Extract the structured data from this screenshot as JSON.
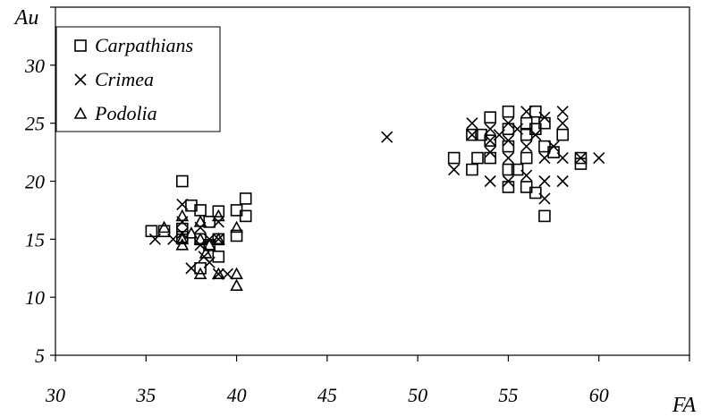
{
  "chart_data": {
    "type": "scatter",
    "xlabel": "FA",
    "ylabel": "Au",
    "xlim": [
      30,
      65
    ],
    "ylim": [
      5,
      35
    ],
    "x_ticks": [
      "30",
      "35",
      "40",
      "45",
      "50",
      "55",
      "60"
    ],
    "y_ticks": [
      "5",
      "10",
      "15",
      "20",
      "25",
      "30"
    ],
    "grid": false,
    "legend_position": "top-left",
    "series": [
      {
        "name": "Carpathians",
        "marker": "square",
        "points": [
          [
            35.3,
            15.7
          ],
          [
            36.0,
            15.7
          ],
          [
            37.0,
            20.0
          ],
          [
            37.0,
            15.9
          ],
          [
            37.5,
            17.9
          ],
          [
            38.0,
            17.5
          ],
          [
            38.0,
            15.0
          ],
          [
            38.0,
            12.5
          ],
          [
            38.5,
            16.5
          ],
          [
            39.0,
            17.4
          ],
          [
            39.0,
            15.0
          ],
          [
            39.0,
            13.5
          ],
          [
            40.0,
            17.5
          ],
          [
            40.0,
            15.3
          ],
          [
            40.5,
            18.5
          ],
          [
            40.5,
            17.0
          ],
          [
            38.5,
            14.5
          ],
          [
            37.0,
            15.2
          ],
          [
            52.0,
            22.0
          ],
          [
            53.0,
            24.0
          ],
          [
            53.3,
            22.0
          ],
          [
            53.0,
            21.0
          ],
          [
            53.5,
            24.0
          ],
          [
            54.0,
            25.5
          ],
          [
            54.0,
            22.0
          ],
          [
            54.0,
            23.5
          ],
          [
            55.0,
            26.0
          ],
          [
            55.0,
            24.5
          ],
          [
            55.0,
            23.0
          ],
          [
            55.0,
            21.0
          ],
          [
            55.0,
            19.5
          ],
          [
            55.5,
            21.0
          ],
          [
            56.0,
            25.0
          ],
          [
            56.0,
            24.0
          ],
          [
            56.0,
            22.0
          ],
          [
            56.0,
            19.5
          ],
          [
            56.5,
            26.0
          ],
          [
            56.5,
            19.0
          ],
          [
            57.0,
            25.0
          ],
          [
            57.0,
            23.0
          ],
          [
            57.0,
            17.0
          ],
          [
            57.5,
            22.5
          ],
          [
            58.0,
            24.0
          ],
          [
            59.0,
            22.0
          ],
          [
            59.0,
            21.5
          ],
          [
            56.5,
            24.5
          ]
        ]
      },
      {
        "name": "Crimea",
        "marker": "x",
        "points": [
          [
            35.5,
            15.0
          ],
          [
            36.5,
            15.0
          ],
          [
            37.0,
            18.0
          ],
          [
            37.0,
            16.5
          ],
          [
            37.0,
            15.5
          ],
          [
            37.5,
            12.5
          ],
          [
            38.0,
            16.0
          ],
          [
            38.0,
            14.5
          ],
          [
            38.2,
            13.5
          ],
          [
            38.5,
            15.0
          ],
          [
            39.0,
            16.5
          ],
          [
            39.0,
            15.0
          ],
          [
            39.0,
            12.0
          ],
          [
            39.5,
            12.0
          ],
          [
            38.5,
            13.0
          ],
          [
            48.3,
            23.8
          ],
          [
            52.0,
            21.0
          ],
          [
            53.0,
            25.0
          ],
          [
            53.0,
            24.0
          ],
          [
            54.0,
            24.5
          ],
          [
            54.0,
            23.5
          ],
          [
            54.0,
            22.5
          ],
          [
            54.0,
            20.0
          ],
          [
            54.5,
            24.0
          ],
          [
            55.0,
            25.0
          ],
          [
            55.0,
            23.5
          ],
          [
            55.0,
            22.0
          ],
          [
            55.0,
            20.0
          ],
          [
            55.5,
            24.5
          ],
          [
            56.0,
            26.0
          ],
          [
            56.0,
            23.0
          ],
          [
            56.0,
            20.5
          ],
          [
            56.5,
            24.0
          ],
          [
            57.0,
            25.5
          ],
          [
            57.0,
            22.0
          ],
          [
            57.0,
            20.0
          ],
          [
            57.0,
            18.5
          ],
          [
            57.5,
            23.0
          ],
          [
            58.0,
            26.0
          ],
          [
            58.0,
            25.0
          ],
          [
            58.0,
            22.0
          ],
          [
            58.0,
            20.0
          ],
          [
            59.0,
            22.0
          ],
          [
            60.0,
            22.0
          ]
        ]
      },
      {
        "name": "Podolia",
        "marker": "triangle",
        "points": [
          [
            36.0,
            16.0
          ],
          [
            37.0,
            17.0
          ],
          [
            37.0,
            15.0
          ],
          [
            37.0,
            14.5
          ],
          [
            37.5,
            15.5
          ],
          [
            38.0,
            16.5
          ],
          [
            38.0,
            15.0
          ],
          [
            38.0,
            12.0
          ],
          [
            38.3,
            13.8
          ],
          [
            38.5,
            14.5
          ],
          [
            39.0,
            17.0
          ],
          [
            39.0,
            15.0
          ],
          [
            39.0,
            12.0
          ],
          [
            40.0,
            16.0
          ],
          [
            40.0,
            12.0
          ],
          [
            40.0,
            11.0
          ]
        ]
      }
    ]
  }
}
